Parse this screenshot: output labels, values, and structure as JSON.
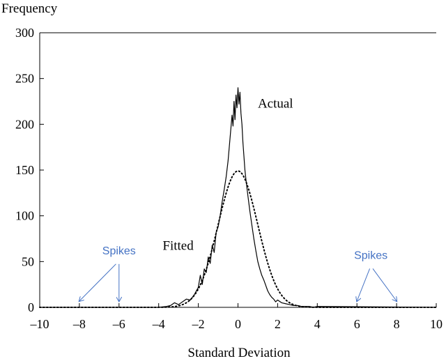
{
  "chart_data": {
    "type": "line",
    "title": "",
    "ylabel": "Frequency",
    "xlabel": "Standard Deviation",
    "xlim": [
      -10,
      10
    ],
    "ylim": [
      0,
      300
    ],
    "x_ticks": [
      -10,
      -8,
      -6,
      -4,
      -2,
      0,
      2,
      4,
      6,
      8,
      10
    ],
    "x_tick_labels": [
      "–10",
      "–8",
      "–6",
      "–4",
      "–2",
      "0",
      "2",
      "4",
      "6",
      "8",
      "10"
    ],
    "y_ticks": [
      0,
      50,
      100,
      150,
      200,
      250,
      300
    ],
    "y_tick_labels": [
      "0",
      "50",
      "100",
      "150",
      "200",
      "250",
      "300"
    ],
    "grid": false,
    "series": [
      {
        "name": "Actual",
        "style": "solid",
        "color": "#000000",
        "x": [
          -10,
          -4,
          -3.6,
          -3.4,
          -3.2,
          -3.0,
          -2.8,
          -2.6,
          -2.4,
          -2.2,
          -2.0,
          -1.9,
          -1.8,
          -1.7,
          -1.6,
          -1.5,
          -1.4,
          -1.3,
          -1.2,
          -1.1,
          -1.0,
          -0.9,
          -0.8,
          -0.7,
          -0.6,
          -0.5,
          -0.4,
          -0.3,
          -0.25,
          -0.2,
          -0.15,
          -0.1,
          -0.05,
          0.0,
          0.05,
          0.1,
          0.15,
          0.2,
          0.25,
          0.3,
          0.35,
          0.4,
          0.5,
          0.6,
          0.7,
          0.8,
          0.9,
          1.0,
          1.1,
          1.2,
          1.3,
          1.4,
          1.5,
          1.6,
          1.7,
          1.8,
          1.9,
          2.0,
          2.2,
          2.4,
          2.6,
          2.8,
          3.0,
          3.2,
          3.4,
          3.6,
          3.8,
          4.0,
          10
        ],
        "y": [
          0,
          0,
          1,
          2,
          5,
          3,
          6,
          9,
          8,
          14,
          22,
          35,
          25,
          42,
          38,
          55,
          48,
          68,
          60,
          82,
          88,
          100,
          115,
          128,
          142,
          160,
          185,
          210,
          198,
          225,
          205,
          232,
          218,
          240,
          222,
          235,
          212,
          200,
          180,
          165,
          150,
          140,
          122,
          105,
          90,
          75,
          62,
          50,
          42,
          35,
          30,
          24,
          18,
          14,
          11,
          9,
          6,
          8,
          5,
          4,
          3,
          2,
          2,
          1,
          1,
          1,
          0,
          1,
          0
        ]
      },
      {
        "name": "Fitted",
        "style": "dotted",
        "color": "#000000",
        "mean": 0,
        "sd": 1.0,
        "peak": 149
      }
    ],
    "annotations": [
      {
        "text": "Actual",
        "x": 1.0,
        "y": 218,
        "color": "#000000"
      },
      {
        "text": "Fitted",
        "x": -3.8,
        "y": 63,
        "color": "#000000"
      },
      {
        "text": "Spikes",
        "x": -6.0,
        "y": 58,
        "color": "#4472c4",
        "arrows_to": [
          -8,
          -6
        ]
      },
      {
        "text": "Spikes",
        "x": 6.7,
        "y": 53,
        "color": "#4472c4",
        "arrows_to": [
          6,
          8
        ]
      }
    ]
  }
}
